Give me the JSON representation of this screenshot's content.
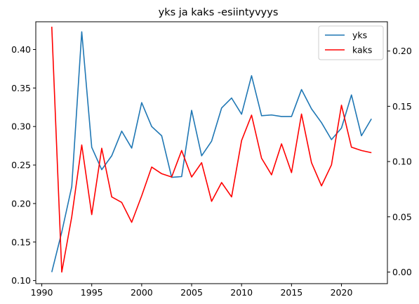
{
  "chart_data": {
    "type": "line",
    "title": "yks ja kaks -esiintyvyys",
    "xlabel": "",
    "ylabel": "",
    "y2label": "",
    "grid": false,
    "legend_position": "top-right",
    "xlim": [
      1989.4,
      2024.6
    ],
    "ylim_left": [
      0.096,
      0.436
    ],
    "ylim_right": [
      -0.0105,
      0.2265
    ],
    "x_ticks": [
      1990,
      1995,
      2000,
      2005,
      2010,
      2015,
      2020
    ],
    "y_left_ticks": [
      "0.10",
      "0.15",
      "0.20",
      "0.25",
      "0.30",
      "0.35",
      "0.40"
    ],
    "y_right_ticks": [
      "0.00",
      "0.05",
      "0.10",
      "0.15",
      "0.20"
    ],
    "x": [
      1991,
      1992,
      1993,
      1994,
      1995,
      1996,
      1997,
      1998,
      1999,
      2000,
      2001,
      2002,
      2003,
      2004,
      2005,
      2006,
      2007,
      2008,
      2009,
      2010,
      2011,
      2012,
      2013,
      2014,
      2015,
      2016,
      2017,
      2018,
      2019,
      2020,
      2021,
      2022,
      2023
    ],
    "series": [
      {
        "name": "yks",
        "axis": "left",
        "color": "#1f77b4",
        "values": [
          0.111,
          0.163,
          0.222,
          0.423,
          0.273,
          0.244,
          0.262,
          0.294,
          0.272,
          0.331,
          0.3,
          0.288,
          0.234,
          0.235,
          0.321,
          0.262,
          0.281,
          0.324,
          0.337,
          0.316,
          0.366,
          0.314,
          0.315,
          0.313,
          0.313,
          0.348,
          0.323,
          0.305,
          0.283,
          0.298,
          0.341,
          0.288,
          0.31
        ]
      },
      {
        "name": "kaks",
        "axis": "right",
        "color": "#ff0000",
        "values": [
          0.222,
          0.0,
          0.05,
          0.115,
          0.052,
          0.112,
          0.068,
          0.063,
          0.045,
          0.069,
          0.095,
          0.089,
          0.086,
          0.11,
          0.086,
          0.099,
          0.064,
          0.081,
          0.068,
          0.119,
          0.142,
          0.103,
          0.088,
          0.116,
          0.09,
          0.143,
          0.099,
          0.078,
          0.097,
          0.151,
          0.113,
          0.11,
          0.108
        ]
      }
    ]
  }
}
